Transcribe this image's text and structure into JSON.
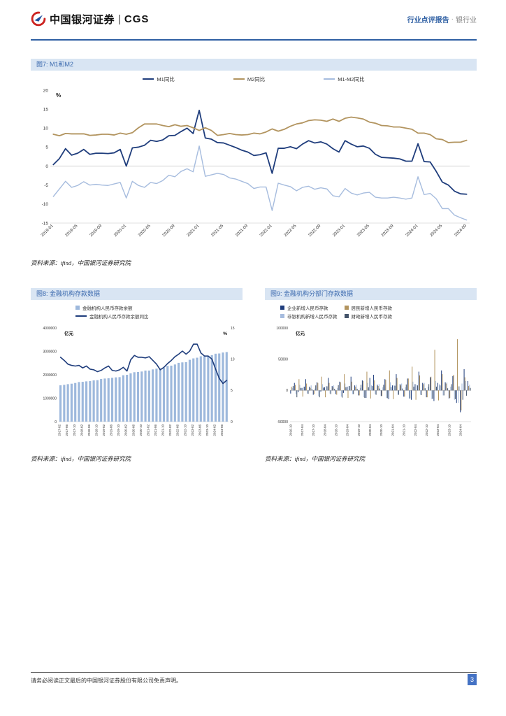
{
  "header": {
    "brand": "中国银河证券",
    "brand_divider": "|",
    "brand_suffix": "CGS",
    "report_type": "行业点评报告",
    "separator": "·",
    "industry": "银行业"
  },
  "fig7": {
    "title": "图7: M1和M2",
    "source": "资料来源：ifind，中国银河证券研究院",
    "chart_data": {
      "type": "line",
      "unit_left": "%",
      "ylim": [
        -15,
        20
      ],
      "yticks": [
        -15,
        -10,
        -5,
        0,
        5,
        10,
        15,
        20
      ],
      "label_step": 4,
      "x": [
        "2019-01",
        "2019-02",
        "2019-03",
        "2019-04",
        "2019-05",
        "2019-06",
        "2019-07",
        "2019-08",
        "2019-09",
        "2019-10",
        "2019-11",
        "2019-12",
        "2020-01",
        "2020-02",
        "2020-03",
        "2020-04",
        "2020-05",
        "2020-06",
        "2020-07",
        "2020-08",
        "2020-09",
        "2020-10",
        "2020-11",
        "2020-12",
        "2021-01",
        "2021-02",
        "2021-03",
        "2021-04",
        "2021-05",
        "2021-06",
        "2021-07",
        "2021-08",
        "2021-09",
        "2021-10",
        "2021-11",
        "2021-12",
        "2022-01",
        "2022-02",
        "2022-03",
        "2022-04",
        "2022-05",
        "2022-06",
        "2022-07",
        "2022-08",
        "2022-09",
        "2022-10",
        "2022-11",
        "2022-12",
        "2023-01",
        "2023-02",
        "2023-03",
        "2023-04",
        "2023-05",
        "2023-06",
        "2023-07",
        "2023-08",
        "2023-09",
        "2023-10",
        "2023-11",
        "2023-12",
        "2024-01",
        "2024-02",
        "2024-03",
        "2024-04",
        "2024-05",
        "2024-06",
        "2024-07",
        "2024-08",
        "2024-09"
      ],
      "series": [
        {
          "name": "M1同比",
          "color": "#1F3D7C",
          "kind": "line",
          "axis": "left",
          "width": 1.8,
          "values": [
            0.4,
            2.0,
            4.6,
            2.9,
            3.4,
            4.4,
            3.1,
            3.4,
            3.4,
            3.3,
            3.5,
            4.4,
            0.0,
            4.8,
            5.0,
            5.5,
            6.8,
            6.5,
            6.9,
            8.0,
            8.1,
            9.1,
            10.0,
            8.6,
            14.7,
            7.4,
            7.1,
            6.2,
            6.1,
            5.5,
            4.9,
            4.2,
            3.7,
            2.8,
            3.0,
            3.5,
            -1.9,
            4.7,
            4.7,
            5.1,
            4.6,
            5.8,
            6.7,
            6.1,
            6.4,
            5.8,
            4.6,
            3.7,
            6.7,
            5.8,
            5.1,
            5.3,
            4.7,
            3.1,
            2.3,
            2.2,
            2.1,
            1.9,
            1.3,
            1.3,
            5.9,
            1.2,
            1.1,
            -1.4,
            -4.2,
            -5.0,
            -6.6,
            -7.3,
            -7.4
          ]
        },
        {
          "name": "M2同比",
          "color": "#B2945F",
          "kind": "line",
          "axis": "left",
          "width": 1.8,
          "values": [
            8.4,
            8.0,
            8.6,
            8.5,
            8.5,
            8.5,
            8.1,
            8.2,
            8.4,
            8.4,
            8.2,
            8.7,
            8.4,
            8.8,
            10.1,
            11.1,
            11.1,
            11.1,
            10.7,
            10.4,
            10.9,
            10.5,
            10.7,
            10.1,
            9.4,
            10.1,
            9.4,
            8.1,
            8.3,
            8.6,
            8.3,
            8.2,
            8.3,
            8.7,
            8.5,
            9.0,
            9.8,
            9.2,
            9.7,
            10.5,
            11.1,
            11.4,
            12.0,
            12.2,
            12.1,
            11.8,
            12.4,
            11.8,
            12.6,
            12.9,
            12.7,
            12.4,
            11.6,
            11.3,
            10.7,
            10.6,
            10.3,
            10.3,
            10.0,
            9.7,
            8.7,
            8.7,
            8.3,
            7.2,
            7.0,
            6.2,
            6.3,
            6.3,
            6.8
          ]
        },
        {
          "name": "M1-M2同比",
          "color": "#A6BCDE",
          "kind": "line",
          "axis": "left",
          "width": 1.4,
          "values": [
            -8.0,
            -6.0,
            -4.0,
            -5.6,
            -5.1,
            -4.1,
            -5.0,
            -4.8,
            -5.0,
            -5.1,
            -4.7,
            -4.3,
            -8.4,
            -4.0,
            -5.1,
            -5.6,
            -4.3,
            -4.6,
            -3.8,
            -2.4,
            -2.8,
            -1.4,
            -0.7,
            -1.5,
            5.3,
            -2.7,
            -2.3,
            -1.9,
            -2.2,
            -3.1,
            -3.4,
            -4.0,
            -4.6,
            -5.9,
            -5.5,
            -5.5,
            -11.7,
            -4.5,
            -5.0,
            -5.4,
            -6.5,
            -5.6,
            -5.3,
            -6.1,
            -5.7,
            -6.0,
            -7.8,
            -8.1,
            -5.9,
            -7.1,
            -7.6,
            -7.1,
            -6.9,
            -8.2,
            -8.4,
            -8.4,
            -8.2,
            -8.4,
            -8.7,
            -8.4,
            -2.8,
            -7.5,
            -7.2,
            -8.6,
            -11.2,
            -11.2,
            -12.9,
            -13.6,
            -14.2
          ]
        }
      ]
    }
  },
  "fig8": {
    "title": "图8: 金融机构存款数据",
    "source": "资料来源：ifind，中国银河证券研究院",
    "chart_data": {
      "type": "bar-line",
      "unit_left": "亿元",
      "unit_right": "%",
      "ylim": [
        0,
        4000000
      ],
      "yticks": [
        0,
        1000000,
        2000000,
        3000000,
        4000000
      ],
      "y2lim": [
        0,
        15
      ],
      "y2ticks": [
        0,
        5,
        10,
        15
      ],
      "label_step": 2,
      "x": [
        "2017-02",
        "2017-04",
        "2017-06",
        "2017-08",
        "2017-10",
        "2017-12",
        "2018-02",
        "2018-04",
        "2018-06",
        "2018-08",
        "2018-10",
        "2018-12",
        "2019-02",
        "2019-04",
        "2019-06",
        "2019-08",
        "2019-10",
        "2019-12",
        "2020-02",
        "2020-04",
        "2020-06",
        "2020-08",
        "2020-10",
        "2020-12",
        "2021-02",
        "2021-04",
        "2021-06",
        "2021-08",
        "2021-10",
        "2021-12",
        "2022-02",
        "2022-04",
        "2022-06",
        "2022-08",
        "2022-10",
        "2022-12",
        "2023-02",
        "2023-04",
        "2023-06",
        "2023-08",
        "2023-10",
        "2023-12",
        "2024-02",
        "2024-04",
        "2024-06",
        "2024-08"
      ],
      "series": [
        {
          "name": "金融机构人民币存款余额",
          "color": "#9DB8DC",
          "kind": "bar",
          "axis": "left",
          "values": [
            1550000,
            1570000,
            1600000,
            1620000,
            1650000,
            1690000,
            1700000,
            1720000,
            1730000,
            1760000,
            1770000,
            1820000,
            1840000,
            1850000,
            1870000,
            1890000,
            1900000,
            1980000,
            2000000,
            2060000,
            2110000,
            2120000,
            2140000,
            2180000,
            2180000,
            2230000,
            2260000,
            2270000,
            2300000,
            2380000,
            2390000,
            2440000,
            2510000,
            2530000,
            2540000,
            2640000,
            2700000,
            2730000,
            2790000,
            2790000,
            2810000,
            2840000,
            2900000,
            2910000,
            2950000,
            2970000
          ]
        },
        {
          "name": "金融机构人民币存款余额同比",
          "color": "#1F3D7C",
          "kind": "line",
          "axis": "right",
          "width": 1.6,
          "values": [
            10.3,
            9.8,
            9.2,
            9.0,
            8.9,
            9.0,
            8.6,
            8.9,
            8.4,
            8.3,
            8.0,
            8.2,
            8.6,
            8.9,
            8.2,
            8.1,
            8.3,
            8.7,
            8.1,
            9.9,
            10.6,
            10.3,
            10.3,
            10.2,
            10.4,
            9.8,
            9.2,
            8.3,
            8.7,
            9.3,
            9.8,
            10.4,
            10.8,
            11.3,
            10.8,
            11.3,
            12.4,
            12.4,
            11.0,
            10.5,
            10.5,
            10.0,
            8.4,
            6.9,
            6.1,
            6.6
          ]
        }
      ]
    }
  },
  "fig9": {
    "title": "图9: 金融机构分部门存款数据",
    "source": "资料来源：ifind，中国银河证券研究院",
    "chart_data": {
      "type": "bar",
      "unit_left": "亿元",
      "ylim": [
        -50000,
        100000
      ],
      "yticks": [
        -50000,
        0,
        50000,
        100000
      ],
      "label_step": 3,
      "x": [
        "2016-10",
        "2016-12",
        "2017-02",
        "2017-04",
        "2017-06",
        "2017-08",
        "2017-10",
        "2017-12",
        "2018-02",
        "2018-04",
        "2018-06",
        "2018-08",
        "2018-10",
        "2018-12",
        "2019-02",
        "2019-04",
        "2019-06",
        "2019-08",
        "2019-10",
        "2019-12",
        "2020-02",
        "2020-04",
        "2020-06",
        "2020-08",
        "2020-10",
        "2020-12",
        "2021-02",
        "2021-04",
        "2021-06",
        "2021-08",
        "2021-10",
        "2021-12",
        "2022-02",
        "2022-04",
        "2022-06",
        "2022-08",
        "2022-10",
        "2022-12",
        "2023-02",
        "2023-04",
        "2023-06",
        "2023-08",
        "2023-10",
        "2023-12",
        "2024-02",
        "2024-04",
        "2024-06",
        "2024-08"
      ],
      "series": [
        {
          "name": "企业新增人民币存款",
          "color": "#1F3D7C",
          "kind": "bar",
          "axis": "left",
          "values": [
            -5000,
            12000,
            -3000,
            4000,
            18000,
            6000,
            -7000,
            13000,
            -2000,
            5000,
            20000,
            7000,
            -6000,
            14000,
            -4000,
            6000,
            22000,
            8000,
            -8000,
            16000,
            -12000,
            20000,
            25000,
            9000,
            -9000,
            18000,
            -14000,
            8000,
            26000,
            10000,
            -10000,
            19000,
            -15000,
            10000,
            30000,
            12000,
            -11000,
            21000,
            -17000,
            12000,
            32000,
            13000,
            -13000,
            23000,
            -20000,
            -35000,
            34000,
            15000
          ]
        },
        {
          "name": "居民新增人民币存款",
          "color": "#B2945F",
          "kind": "bar",
          "axis": "left",
          "values": [
            6000,
            9000,
            18000,
            -10000,
            11000,
            4000,
            -6000,
            12000,
            22000,
            -11000,
            12000,
            5000,
            -7000,
            13000,
            26000,
            -12000,
            14000,
            6000,
            -8000,
            15000,
            30000,
            -13000,
            16000,
            7000,
            -9000,
            17000,
            32000,
            -14000,
            20000,
            8000,
            -10000,
            19000,
            38000,
            -15000,
            24000,
            10000,
            -11000,
            22000,
            65000,
            -16000,
            26000,
            11000,
            -12000,
            25000,
            82000,
            -32000,
            21000,
            7000
          ]
        },
        {
          "name": "非银机构新增人民币存款",
          "color": "#A6BCDE",
          "kind": "bar",
          "axis": "left",
          "values": [
            4000,
            -6000,
            9000,
            6000,
            -5000,
            8000,
            3000,
            -9000,
            10000,
            7000,
            -5000,
            8000,
            4000,
            -10000,
            11000,
            7000,
            -6000,
            9000,
            4000,
            -11000,
            12000,
            8000,
            -6000,
            10000,
            5000,
            -12000,
            13000,
            8000,
            -7000,
            11000,
            5000,
            -13000,
            14000,
            9000,
            -7000,
            12000,
            6000,
            -14000,
            15000,
            10000,
            -8000,
            13000,
            6000,
            -15000,
            -20000,
            11000,
            15000,
            9000
          ]
        },
        {
          "name": "财政新增人民币存款",
          "color": "#44546A",
          "kind": "bar",
          "axis": "left",
          "values": [
            7000,
            -11000,
            4000,
            6000,
            -5500,
            2000,
            8000,
            -11000,
            4500,
            6500,
            -6000,
            2500,
            8500,
            -11500,
            5000,
            7000,
            -6000,
            2500,
            9000,
            -12000,
            5000,
            7000,
            -7000,
            3000,
            9000,
            -12500,
            5500,
            7500,
            -7000,
            3000,
            9500,
            -13000,
            6000,
            8000,
            -7500,
            3500,
            10000,
            -13500,
            6000,
            8000,
            -8000,
            3500,
            10000,
            -14000,
            6500,
            -15000,
            -8500,
            4000
          ]
        }
      ]
    }
  },
  "footer": {
    "disclaimer": "请务必阅读正文最后的中国银河证券股份有限公司免责声明。",
    "page_number": "3"
  }
}
